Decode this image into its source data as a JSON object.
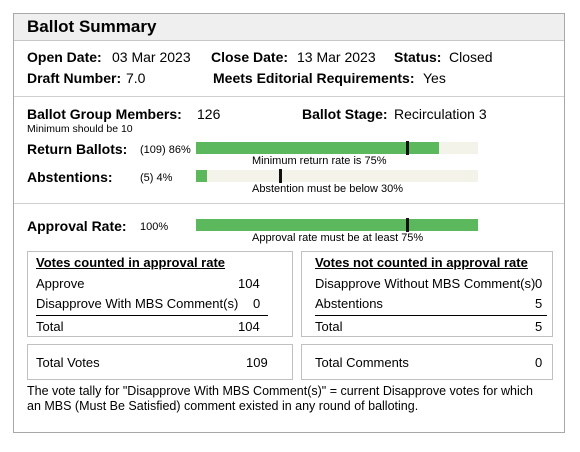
{
  "title": "Ballot Summary",
  "info": {
    "open_date_label": "Open Date:",
    "open_date": "03 Mar 2023",
    "close_date_label": "Close Date:",
    "close_date": "13 Mar 2023",
    "status_label": "Status:",
    "status": "Closed",
    "draft_number_label": "Draft Number:",
    "draft_number": "7.0",
    "editorial_label": "Meets Editorial Requirements:",
    "editorial": "Yes"
  },
  "group": {
    "members_label": "Ballot Group Members:",
    "members": "126",
    "members_note": "Minimum should be 10",
    "stage_label": "Ballot Stage:",
    "stage": "Recirculation 3"
  },
  "return_ballots": {
    "label": "Return Ballots:",
    "value": "(109) 86%",
    "fill_fraction": 0.86,
    "threshold_fraction": 0.75,
    "note": "Minimum return rate is 75%"
  },
  "abstentions": {
    "label": "Abstentions:",
    "value": "(5) 4%",
    "fill_fraction": 0.04,
    "threshold_fraction": 0.3,
    "note": "Abstention must be below 30%"
  },
  "approval": {
    "label": "Approval Rate:",
    "value": "100%",
    "fill_fraction": 1.0,
    "threshold_fraction": 0.75,
    "note": "Approval rate must be at least 75%"
  },
  "counted": {
    "heading": "Votes counted in approval rate",
    "rows": [
      {
        "label": "Approve",
        "value": "104"
      },
      {
        "label": "Disapprove With MBS Comment(s)",
        "value": "0"
      }
    ],
    "total_label": "Total",
    "total": "104"
  },
  "not_counted": {
    "heading": "Votes not counted in approval rate",
    "rows": [
      {
        "label": "Disapprove Without MBS Comment(s)",
        "value": "0"
      },
      {
        "label": "Abstentions",
        "value": "5"
      }
    ],
    "total_label": "Total",
    "total": "5"
  },
  "totals": {
    "votes_label": "Total Votes",
    "votes": "109",
    "comments_label": "Total Comments",
    "comments": "0"
  },
  "footnote_line1": "The vote tally for \"Disapprove With MBS Comment(s)\" = current Disapprove votes for which",
  "footnote_line2": "an MBS (Must Be Satisfied) comment existed in any round of balloting.",
  "colors": {
    "bar_fill": "#5cb85c",
    "bar_track": "#f3f3ea",
    "header_bg": "#efefef"
  }
}
